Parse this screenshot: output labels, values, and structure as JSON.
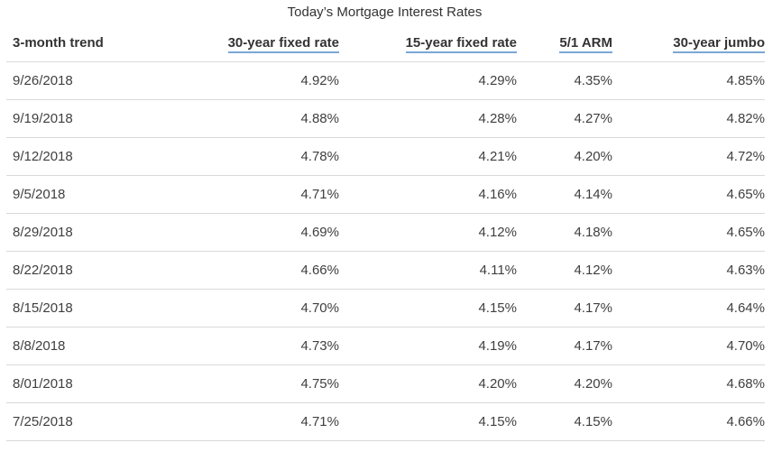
{
  "caption": "Today’s Mortgage Interest Rates",
  "columns": [
    {
      "label": "3-month trend",
      "link": false
    },
    {
      "label": "30-year fixed rate",
      "link": true
    },
    {
      "label": "15-year fixed rate",
      "link": true
    },
    {
      "label": "5/1 ARM",
      "link": true
    },
    {
      "label": "30-year jumbo",
      "link": true
    }
  ],
  "rows": [
    [
      "9/26/2018",
      "4.92%",
      "4.29%",
      "4.35%",
      "4.85%"
    ],
    [
      "9/19/2018",
      "4.88%",
      "4.28%",
      "4.27%",
      "4.82%"
    ],
    [
      "9/12/2018",
      "4.78%",
      "4.21%",
      "4.20%",
      "4.72%"
    ],
    [
      "9/5/2018",
      "4.71%",
      "4.16%",
      "4.14%",
      "4.65%"
    ],
    [
      "8/29/2018",
      "4.69%",
      "4.12%",
      "4.18%",
      "4.65%"
    ],
    [
      "8/22/2018",
      "4.66%",
      "4.11%",
      "4.12%",
      "4.63%"
    ],
    [
      "8/15/2018",
      "4.70%",
      "4.15%",
      "4.17%",
      "4.64%"
    ],
    [
      "8/8/2018",
      "4.73%",
      "4.19%",
      "4.17%",
      "4.70%"
    ],
    [
      "8/01/2018",
      "4.75%",
      "4.20%",
      "4.20%",
      "4.68%"
    ],
    [
      "7/25/2018",
      "4.71%",
      "4.15%",
      "4.15%",
      "4.66%"
    ]
  ],
  "colors": {
    "link_underline": "#7aa7d6",
    "row_border": "#d9d9d9",
    "text": "#3f3f3f"
  }
}
